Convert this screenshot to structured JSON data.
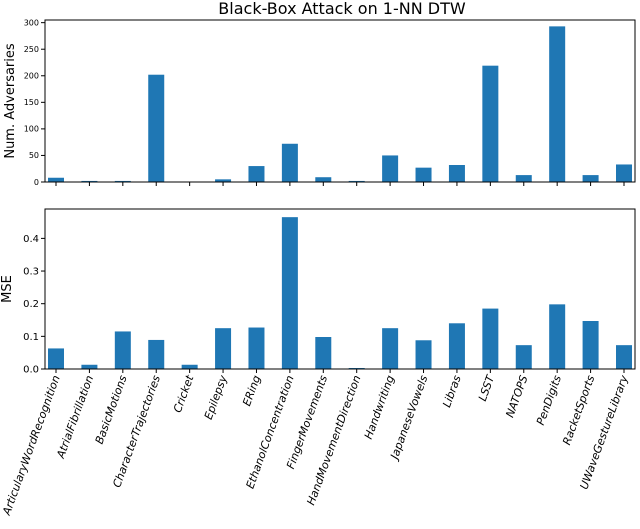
{
  "title": "Black-Box Attack on 1-NN DTW",
  "colors": {
    "bar": "#1f77b4",
    "axis": "#000000",
    "background": "#ffffff"
  },
  "chart_data": [
    {
      "type": "bar",
      "title": "Black-Box Attack on 1-NN DTW",
      "ylabel": "Num. Adversaries",
      "xlabel": "",
      "categories": [
        "ArticularyWordRecognition",
        "AtrialFibrillation",
        "BasicMotions",
        "CharacterTrajectories",
        "Cricket",
        "Epilepsy",
        "ERing",
        "EthanolConcentration",
        "FingerMovements",
        "HandMovementDirection",
        "Handwriting",
        "JapaneseVowels",
        "Libras",
        "LSST",
        "NATOPS",
        "PenDigits",
        "RacketSports",
        "UWaveGestureLibrary"
      ],
      "values": [
        8,
        2,
        2,
        202,
        0,
        5,
        30,
        72,
        9,
        2,
        50,
        27,
        32,
        219,
        13,
        293,
        13,
        33
      ],
      "ylim": [
        0,
        305
      ],
      "yticks": [
        "0",
        "50",
        "100",
        "150",
        "200",
        "250",
        "300"
      ],
      "grid": false
    },
    {
      "type": "bar",
      "ylabel": "MSE",
      "xlabel": "",
      "categories": [
        "ArticularyWordRecognition",
        "AtrialFibrillation",
        "BasicMotions",
        "CharacterTrajectories",
        "Cricket",
        "Epilepsy",
        "ERing",
        "EthanolConcentration",
        "FingerMovements",
        "HandMovementDirection",
        "Handwriting",
        "JapaneseVowels",
        "Libras",
        "LSST",
        "NATOPS",
        "PenDigits",
        "RacketSports",
        "UWaveGestureLibrary"
      ],
      "values": [
        0.063,
        0.013,
        0.115,
        0.089,
        0.013,
        0.125,
        0.127,
        0.465,
        0.098,
        0.003,
        0.125,
        0.088,
        0.14,
        0.185,
        0.073,
        0.198,
        0.147,
        0.073
      ],
      "ylim": [
        0,
        0.49
      ],
      "yticks": [
        "0.0",
        "0.1",
        "0.2",
        "0.3",
        "0.4"
      ],
      "grid": false
    }
  ]
}
